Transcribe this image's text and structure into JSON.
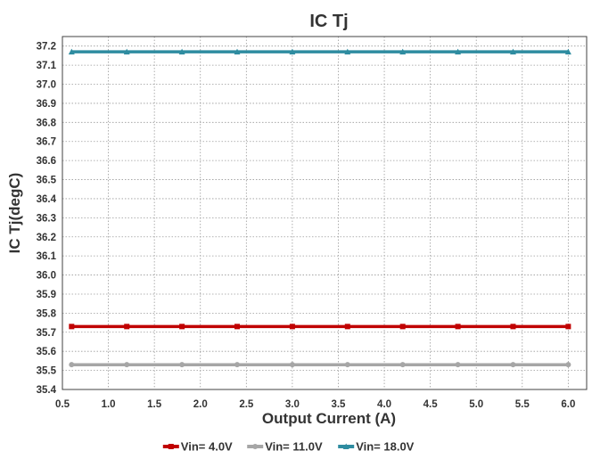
{
  "chart_data": {
    "type": "line",
    "title": "IC Tj",
    "xlabel": "Output Current (A)",
    "ylabel": "IC Tj(degC)",
    "xlim": [
      0.5,
      6.2
    ],
    "ylim": [
      35.4,
      37.25
    ],
    "xticks": [
      "0.5",
      "1.0",
      "1.5",
      "2.0",
      "2.5",
      "3.0",
      "3.5",
      "4.0",
      "4.5",
      "5.0",
      "5.5",
      "6.0"
    ],
    "yticks": [
      "35.4",
      "35.5",
      "35.6",
      "35.7",
      "35.8",
      "35.9",
      "36.0",
      "36.1",
      "36.2",
      "36.3",
      "36.4",
      "36.5",
      "36.6",
      "36.7",
      "36.8",
      "36.9",
      "37.0",
      "37.1",
      "37.2"
    ],
    "grid": true,
    "legend_position": "bottom",
    "x": [
      0.6,
      1.2,
      1.8,
      2.4,
      3.0,
      3.6,
      4.2,
      4.8,
      5.4,
      6.0
    ],
    "series": [
      {
        "name": "Vin= 4.0V",
        "color": "#c00000",
        "marker": "square",
        "values": [
          35.73,
          35.73,
          35.73,
          35.73,
          35.73,
          35.73,
          35.73,
          35.73,
          35.73,
          35.73
        ]
      },
      {
        "name": "Vin= 11.0V",
        "color": "#a6a6a6",
        "marker": "circle",
        "values": [
          35.53,
          35.53,
          35.53,
          35.53,
          35.53,
          35.53,
          35.53,
          35.53,
          35.53,
          35.53
        ]
      },
      {
        "name": "Vin= 18.0V",
        "color": "#2e8ca0",
        "marker": "triangle",
        "values": [
          37.17,
          37.17,
          37.17,
          37.17,
          37.17,
          37.17,
          37.17,
          37.17,
          37.17,
          37.17
        ]
      }
    ]
  }
}
